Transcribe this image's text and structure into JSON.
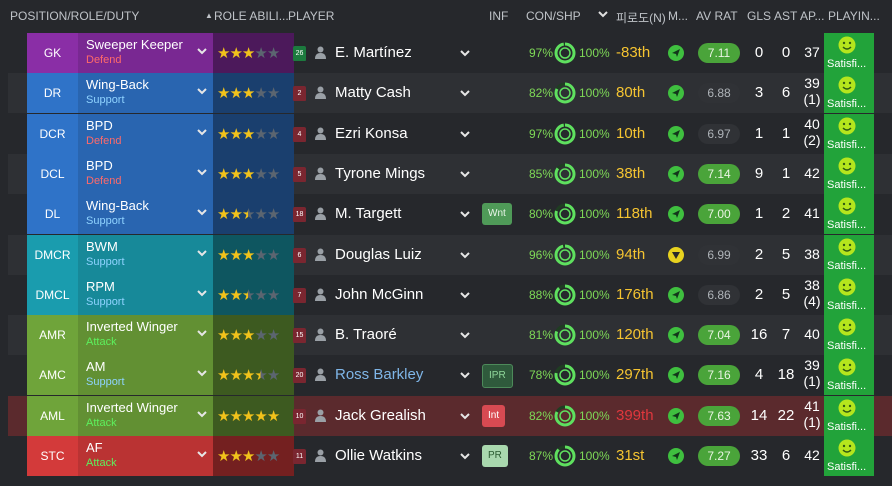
{
  "header": {
    "position_role_duty": "POSITION/ROLE/DUTY",
    "role_ability": "ROLE ABILI...",
    "player": "PLAYER",
    "inf": "INF",
    "con_shp": "CON/SHP",
    "rank": "피로도(N)",
    "morale": "M...",
    "av_rat": "AV RAT",
    "gls": "GLS",
    "ast": "AST",
    "apps": "AP...",
    "playing_time": "PLAYIN..."
  },
  "colors": {
    "gk": "#8a2ea6",
    "defence": "#2f73c8",
    "midfield": "#1a9cae",
    "attack_mid": "#6fa43a",
    "striker": "#d33a3a",
    "defend_duty": "#ff6a6a",
    "support_duty": "#8fd3ff",
    "attack_duty": "#5df05d"
  },
  "rows": [
    {
      "pos": "GK",
      "role": "Sweeper Keeper",
      "duty": "Defend",
      "stars": [
        1,
        1,
        1,
        0,
        0
      ],
      "shirt": "26",
      "name": "E. Martínez",
      "inf": "",
      "con": "97%",
      "con_frac": 0.97,
      "shp": "100%",
      "rank": "-83th",
      "rating": "7.11",
      "gls": "0",
      "ast": "0",
      "apps": "37",
      "apps_sub": "",
      "playing": "Satisfi..."
    },
    {
      "pos": "DR",
      "role": "Wing-Back",
      "duty": "Support",
      "stars": [
        1,
        1,
        1,
        0,
        0
      ],
      "shirt": "2",
      "name": "Matty Cash",
      "inf": "",
      "con": "82%",
      "con_frac": 0.82,
      "shp": "100%",
      "rank": "80th",
      "rating": "6.88",
      "gls": "3",
      "ast": "6",
      "apps": "39",
      "apps_sub": "(1)",
      "playing": "Satisfi..."
    },
    {
      "pos": "DCR",
      "role": "BPD",
      "duty": "Defend",
      "stars": [
        1,
        1,
        1,
        0,
        0
      ],
      "shirt": "4",
      "name": "Ezri Konsa",
      "inf": "",
      "con": "97%",
      "con_frac": 0.97,
      "shp": "100%",
      "rank": "10th",
      "rating": "6.97",
      "gls": "1",
      "ast": "1",
      "apps": "40",
      "apps_sub": "(2)",
      "playing": "Satisfi..."
    },
    {
      "pos": "DCL",
      "role": "BPD",
      "duty": "Defend",
      "stars": [
        1,
        1,
        1,
        0,
        0
      ],
      "shirt": "5",
      "name": "Tyrone Mings",
      "inf": "",
      "con": "85%",
      "con_frac": 0.85,
      "shp": "100%",
      "rank": "38th",
      "rating": "7.14",
      "gls": "9",
      "ast": "1",
      "apps": "42",
      "apps_sub": "",
      "playing": "Satisfi..."
    },
    {
      "pos": "DL",
      "role": "Wing-Back",
      "duty": "Support",
      "stars": [
        1,
        1,
        0.5,
        0,
        0
      ],
      "shirt": "18",
      "name": "M. Targett",
      "inf": "Wnt",
      "con": "80%",
      "con_frac": 0.8,
      "shp": "100%",
      "rank": "118th",
      "rating": "7.00",
      "gls": "1",
      "ast": "2",
      "apps": "41",
      "apps_sub": "",
      "playing": "Satisfi..."
    },
    {
      "pos": "DMCR",
      "role": "BWM",
      "duty": "Support",
      "stars": [
        1,
        1,
        1,
        0,
        0
      ],
      "shirt": "6",
      "name": "Douglas Luiz",
      "inf": "",
      "con": "96%",
      "con_frac": 0.96,
      "shp": "100%",
      "rank": "94th",
      "rating": "6.99",
      "gls": "2",
      "ast": "5",
      "apps": "38",
      "apps_sub": "",
      "playing": "Satisfi..."
    },
    {
      "pos": "DMCL",
      "role": "RPM",
      "duty": "Support",
      "stars": [
        1,
        1,
        0.5,
        0,
        0
      ],
      "shirt": "7",
      "name": "John McGinn",
      "inf": "",
      "con": "88%",
      "con_frac": 0.88,
      "shp": "100%",
      "rank": "176th",
      "rating": "6.86",
      "gls": "2",
      "ast": "5",
      "apps": "38",
      "apps_sub": "(4)",
      "playing": "Satisfi..."
    },
    {
      "pos": "AMR",
      "role": "Inverted Winger",
      "duty": "Attack",
      "stars": [
        1,
        1,
        1,
        0,
        0
      ],
      "shirt": "15",
      "name": "B. Traoré",
      "inf": "",
      "con": "81%",
      "con_frac": 0.81,
      "shp": "100%",
      "rank": "120th",
      "rating": "7.04",
      "gls": "16",
      "ast": "7",
      "apps": "40",
      "apps_sub": "",
      "playing": "Satisfi..."
    },
    {
      "pos": "AMC",
      "role": "AM",
      "duty": "Support",
      "stars": [
        1,
        1,
        1,
        0.5,
        0
      ],
      "shirt": "20",
      "name": "Ross Barkley",
      "inf": "IPR",
      "con": "78%",
      "con_frac": 0.78,
      "shp": "100%",
      "rank": "297th",
      "rating": "7.16",
      "gls": "4",
      "ast": "18",
      "apps": "39",
      "apps_sub": "(1)",
      "playing": "Satisfi..."
    },
    {
      "pos": "AML",
      "role": "Inverted Winger",
      "duty": "Attack",
      "stars": [
        1,
        1,
        1,
        1,
        1
      ],
      "shirt": "10",
      "name": "Jack Grealish",
      "inf": "Int",
      "con": "82%",
      "con_frac": 0.82,
      "shp": "100%",
      "rank": "399th",
      "rating": "7.63",
      "gls": "14",
      "ast": "22",
      "apps": "41",
      "apps_sub": "(1)",
      "playing": "Satisfi..."
    },
    {
      "pos": "STC",
      "role": "AF",
      "duty": "Attack",
      "stars": [
        1,
        1,
        1,
        0,
        0
      ],
      "shirt": "11",
      "name": "Ollie Watkins",
      "inf": "PR",
      "con": "87%",
      "con_frac": 0.87,
      "shp": "100%",
      "rank": "31st",
      "rating": "7.27",
      "gls": "33",
      "ast": "6",
      "apps": "42",
      "apps_sub": "",
      "playing": "Satisfi..."
    }
  ]
}
